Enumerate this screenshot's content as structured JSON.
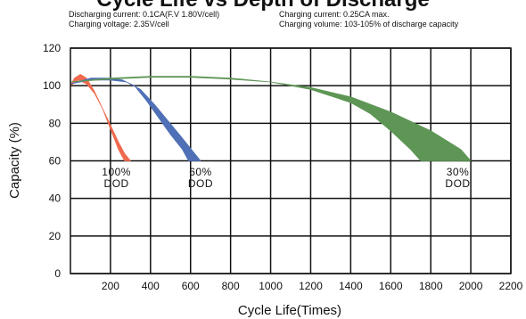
{
  "header": {
    "title": "Cycle Life vs Depth of Discharge",
    "conditions": {
      "discharging_current": "Discharging current: 0.1CA(F.V 1.80V/cell)",
      "charging_voltage": "Charging voltage: 2.35V/cell",
      "charging_current": "Charging current: 0.25CA max.",
      "charging_volume": "Charging volume: 103-105% of discharge capacity"
    }
  },
  "chart_data": {
    "type": "area",
    "title": "Cycle Life vs Depth of Discharge",
    "xlabel": "Cycle Life(Times)",
    "ylabel": "Capacity (%)",
    "xlim": [
      0,
      2200
    ],
    "ylim": [
      0,
      120
    ],
    "x_ticks": [
      "200",
      "400",
      "600",
      "800",
      "1000",
      "1200",
      "1400",
      "1600",
      "1800",
      "2000",
      "2200"
    ],
    "y_ticks": [
      "0",
      "20",
      "40",
      "60",
      "80",
      "100",
      "120"
    ],
    "grid": true,
    "series": [
      {
        "label_line1": "100%",
        "label_line2": "DOD",
        "label_at": [
          230,
          54
        ],
        "color": "#ef6a4f",
        "upper": [
          [
            0,
            100
          ],
          [
            20,
            104
          ],
          [
            50,
            106
          ],
          [
            80,
            104
          ],
          [
            120,
            97
          ],
          [
            160,
            88
          ],
          [
            200,
            77
          ],
          [
            240,
            66
          ],
          [
            270,
            60
          ]
        ],
        "lower": [
          [
            0,
            100
          ],
          [
            40,
            103
          ],
          [
            80,
            101
          ],
          [
            120,
            96
          ],
          [
            160,
            88
          ],
          [
            200,
            79
          ],
          [
            240,
            70
          ],
          [
            270,
            64
          ],
          [
            300,
            60
          ]
        ]
      },
      {
        "label_line1": "60%",
        "label_line2": "DOD",
        "label_at": [
          650,
          54
        ],
        "color": "#4f70b6",
        "upper": [
          [
            0,
            101
          ],
          [
            100,
            104
          ],
          [
            200,
            104
          ],
          [
            260,
            103
          ],
          [
            320,
            100
          ],
          [
            380,
            92
          ],
          [
            440,
            83
          ],
          [
            500,
            74
          ],
          [
            560,
            66
          ],
          [
            590,
            60
          ]
        ],
        "lower": [
          [
            0,
            101
          ],
          [
            100,
            103
          ],
          [
            200,
            103
          ],
          [
            280,
            102
          ],
          [
            350,
            98
          ],
          [
            420,
            90
          ],
          [
            490,
            81
          ],
          [
            560,
            72
          ],
          [
            620,
            64
          ],
          [
            650,
            60
          ]
        ]
      },
      {
        "label_line1": "30%",
        "label_line2": "DOD",
        "label_at": [
          1935,
          54
        ],
        "color": "#5e9655",
        "upper": [
          [
            0,
            102
          ],
          [
            200,
            104
          ],
          [
            400,
            105
          ],
          [
            600,
            105
          ],
          [
            800,
            104
          ],
          [
            1000,
            102
          ],
          [
            1200,
            98
          ],
          [
            1400,
            91
          ],
          [
            1500,
            85
          ],
          [
            1600,
            76
          ],
          [
            1700,
            66
          ],
          [
            1750,
            60
          ]
        ],
        "lower": [
          [
            0,
            102
          ],
          [
            200,
            103.5
          ],
          [
            400,
            104.5
          ],
          [
            600,
            104.5
          ],
          [
            800,
            103.5
          ],
          [
            1000,
            102
          ],
          [
            1200,
            99
          ],
          [
            1400,
            94
          ],
          [
            1600,
            86
          ],
          [
            1800,
            76
          ],
          [
            1950,
            66
          ],
          [
            2000,
            60
          ]
        ]
      }
    ]
  }
}
